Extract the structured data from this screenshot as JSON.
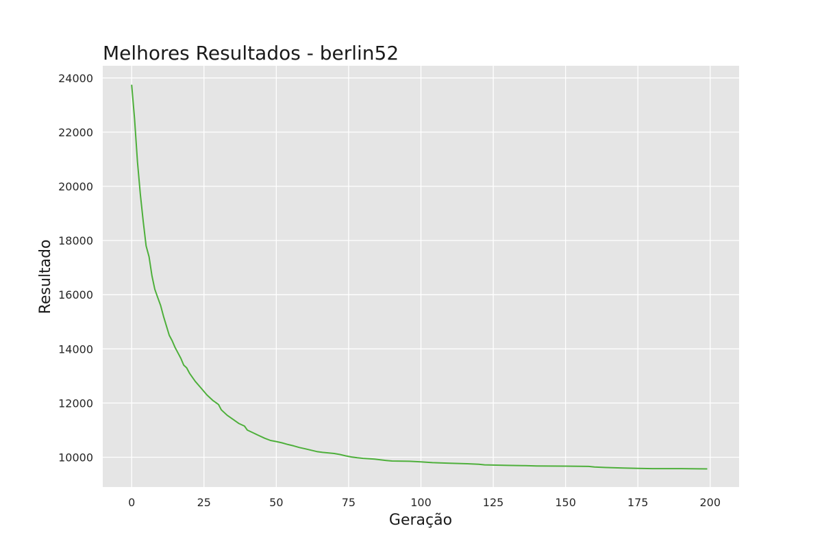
{
  "chart_data": {
    "type": "line",
    "title": "Melhores Resultados - berlin52",
    "xlabel": "Geração",
    "ylabel": "Resultado",
    "xlim": [
      -10,
      210
    ],
    "ylim": [
      8900,
      24450
    ],
    "x_ticks": [
      0,
      25,
      50,
      75,
      100,
      125,
      150,
      175,
      200
    ],
    "y_ticks": [
      10000,
      12000,
      14000,
      16000,
      18000,
      20000,
      22000,
      24000
    ],
    "grid": true,
    "colors": {
      "line": "#4daf3a",
      "plot_background": "#e5e5e5",
      "grid": "#ffffff"
    },
    "series": [
      {
        "x": [
          0,
          1,
          2,
          3,
          4,
          5,
          6,
          7,
          8,
          9,
          10,
          11,
          12,
          13,
          14,
          15,
          16,
          17,
          18,
          19,
          20,
          22,
          24,
          26,
          28,
          30,
          31,
          33,
          35,
          37,
          39,
          40,
          42,
          44,
          46,
          48,
          50,
          52,
          54,
          56,
          58,
          60,
          62,
          64,
          66,
          70,
          72,
          74,
          76,
          78,
          80,
          84,
          88,
          90,
          96,
          100,
          104,
          110,
          116,
          120,
          122,
          130,
          136,
          140,
          150,
          158,
          160,
          164,
          170,
          175,
          180,
          190,
          199
        ],
        "y": [
          23750,
          22500,
          20900,
          19700,
          18700,
          17800,
          17400,
          16700,
          16200,
          15900,
          15600,
          15200,
          14850,
          14500,
          14300,
          14050,
          13850,
          13650,
          13400,
          13300,
          13100,
          12800,
          12550,
          12300,
          12100,
          11950,
          11750,
          11550,
          11400,
          11250,
          11150,
          11000,
          10900,
          10800,
          10700,
          10620,
          10580,
          10530,
          10470,
          10420,
          10360,
          10310,
          10260,
          10210,
          10180,
          10140,
          10100,
          10050,
          10010,
          9980,
          9960,
          9930,
          9880,
          9860,
          9850,
          9830,
          9800,
          9780,
          9760,
          9740,
          9720,
          9700,
          9690,
          9680,
          9670,
          9660,
          9640,
          9620,
          9600,
          9590,
          9580,
          9580,
          9570
        ]
      }
    ]
  }
}
